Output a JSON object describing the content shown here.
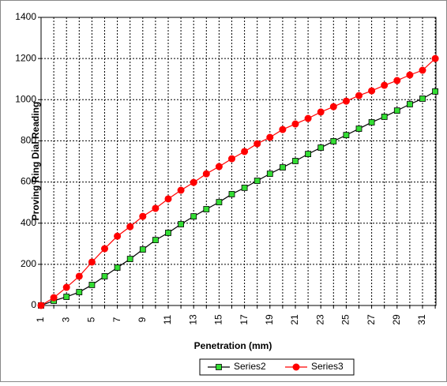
{
  "chart_data": {
    "type": "line",
    "x_label": "Penetration (mm)",
    "y_label": "Proving Ring Dial Reading",
    "categories": [
      1,
      null,
      3,
      null,
      5,
      null,
      7,
      null,
      9,
      null,
      11,
      null,
      13,
      null,
      15,
      null,
      17,
      null,
      19,
      null,
      21,
      null,
      23,
      null,
      25,
      null,
      27,
      null,
      29,
      null,
      31,
      null
    ],
    "series": [
      {
        "name": "Series2",
        "color": "#33dd33",
        "line_color": "#000000",
        "marker": "square",
        "values": [
          0,
          23,
          42,
          65,
          100,
          142,
          184,
          226,
          272,
          318,
          353,
          395,
          433,
          468,
          502,
          541,
          572,
          606,
          640,
          671,
          702,
          736,
          767,
          798,
          828,
          859,
          890,
          917,
          947,
          978,
          1005,
          1040
        ]
      },
      {
        "name": "Series3",
        "color": "#ff0000",
        "line_color": "#ff0000",
        "marker": "circle",
        "values": [
          0,
          38,
          88,
          142,
          211,
          276,
          337,
          383,
          433,
          472,
          518,
          560,
          598,
          640,
          675,
          713,
          748,
          786,
          817,
          855,
          882,
          909,
          940,
          966,
          993,
          1020,
          1043,
          1070,
          1093,
          1120,
          1143,
          1200
        ]
      }
    ],
    "ylim": [
      0,
      1400
    ],
    "yticks": [
      0,
      200,
      400,
      600,
      800,
      1000,
      1200,
      1400
    ],
    "grid": true,
    "legend": "bottom"
  }
}
